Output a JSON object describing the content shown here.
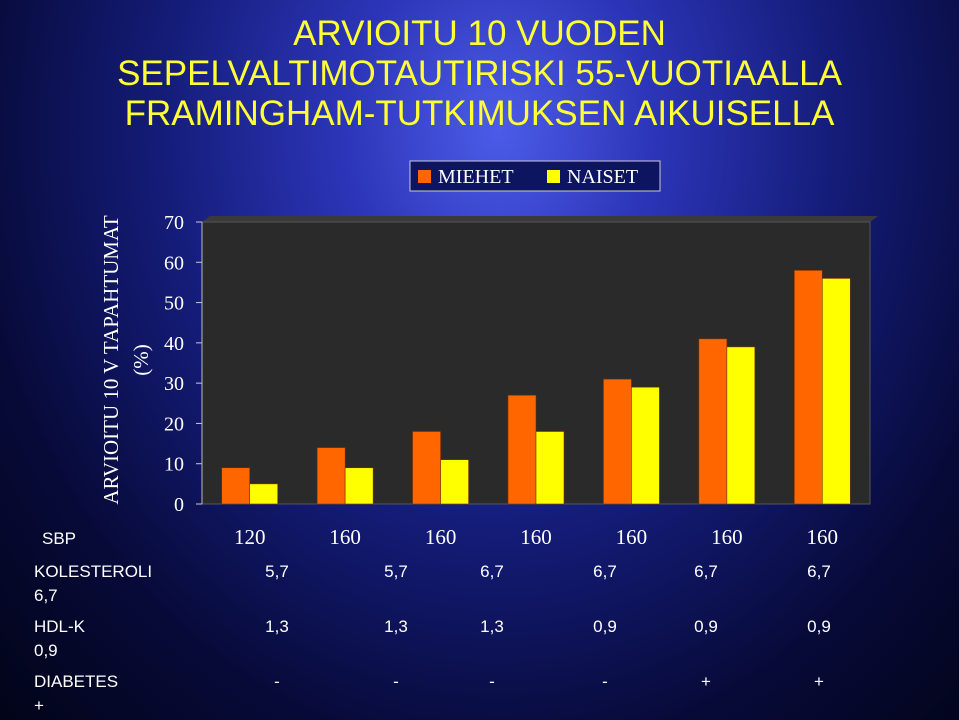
{
  "title": {
    "line1": "ARVIOITU 10 VUODEN",
    "line2": "SEPELVALTIMOTAUTIRISKI 55-VUOTIAALLA",
    "line3": "FRAMINGHAM-TUTKIMUKSEN AIKUISELLA"
  },
  "colors": {
    "title": "#ffff33",
    "men": "#ff6600",
    "women": "#ffff00",
    "plot_bg": "#2a2a2a",
    "text": "#ffffff"
  },
  "chart_data": {
    "type": "bar",
    "ylabel_line1": "ARVIOITU 10 V TAPAHTUMAT",
    "ylabel_line2": "(%)",
    "ylim": [
      0,
      70
    ],
    "yticks": [
      0,
      10,
      20,
      30,
      40,
      50,
      60,
      70
    ],
    "grid": false,
    "legend_position": "top-center",
    "categories": [
      "120",
      "160",
      "160",
      "160",
      "160",
      "160",
      "160"
    ],
    "series": [
      {
        "name": "MIEHET",
        "values": [
          9,
          14,
          18,
          27,
          31,
          41,
          58
        ]
      },
      {
        "name": "NAISET",
        "values": [
          5,
          9,
          11,
          18,
          29,
          39,
          56
        ]
      }
    ]
  },
  "table": {
    "sbp_label": "SBP",
    "rows": [
      {
        "label": "KOLESTEROLI",
        "label2": "6,7",
        "values": [
          "5,7",
          "5,7",
          "6,7",
          "6,7",
          "6,7",
          "6,7"
        ]
      },
      {
        "label": "HDL-K",
        "label2": "0,9",
        "values": [
          "1,3",
          "1,3",
          "1,3",
          "0,9",
          "0,9",
          "0,9"
        ]
      },
      {
        "label": "DIABETES",
        "label2": "+",
        "values": [
          "-",
          "-",
          "-",
          "-",
          "+",
          "+"
        ]
      }
    ]
  }
}
